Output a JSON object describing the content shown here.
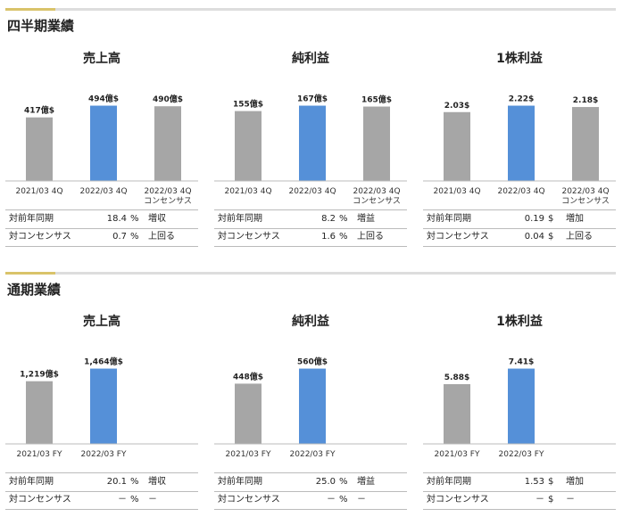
{
  "sections": [
    {
      "title": "四半期業績",
      "panels": [
        {
          "title": "売上高",
          "categories": [
            "2021/03 4Q",
            "2022/03 4Q",
            "2022/03 4Q\nコンセンサス"
          ],
          "values": [
            417,
            494,
            490
          ],
          "value_labels": [
            "417億$",
            "494億$",
            "490億$"
          ],
          "colors": [
            "#a6a6a6",
            "#5590d8",
            "#a6a6a6"
          ],
          "rows": [
            {
              "label": "対前年同期",
              "value": "18.4",
              "unit": "%",
              "note": "増収"
            },
            {
              "label": "対コンセンサス",
              "value": "0.7",
              "unit": "%",
              "note": "上回る"
            }
          ]
        },
        {
          "title": "純利益",
          "categories": [
            "2021/03 4Q",
            "2022/03 4Q",
            "2022/03 4Q\nコンセンサス"
          ],
          "values": [
            155,
            167,
            165
          ],
          "value_labels": [
            "155億$",
            "167億$",
            "165億$"
          ],
          "colors": [
            "#a6a6a6",
            "#5590d8",
            "#a6a6a6"
          ],
          "rows": [
            {
              "label": "対前年同期",
              "value": "8.2",
              "unit": "%",
              "note": "増益"
            },
            {
              "label": "対コンセンサス",
              "value": "1.6",
              "unit": "%",
              "note": "上回る"
            }
          ]
        },
        {
          "title": "1株利益",
          "categories": [
            "2021/03 4Q",
            "2022/03 4Q",
            "2022/03 4Q\nコンセンサス"
          ],
          "values": [
            2.03,
            2.22,
            2.18
          ],
          "value_labels": [
            "2.03$",
            "2.22$",
            "2.18$"
          ],
          "colors": [
            "#a6a6a6",
            "#5590d8",
            "#a6a6a6"
          ],
          "rows": [
            {
              "label": "対前年同期",
              "value": "0.19",
              "unit": "$",
              "note": "増加"
            },
            {
              "label": "対コンセンサス",
              "value": "0.04",
              "unit": "$",
              "note": "上回る"
            }
          ]
        }
      ]
    },
    {
      "title": "通期業績",
      "panels": [
        {
          "title": "売上高",
          "categories": [
            "2021/03 FY",
            "2022/03 FY"
          ],
          "values": [
            1219,
            1464
          ],
          "value_labels": [
            "1,219億$",
            "1,464億$"
          ],
          "colors": [
            "#a6a6a6",
            "#5590d8"
          ],
          "rows": [
            {
              "label": "対前年同期",
              "value": "20.1",
              "unit": "%",
              "note": "増収"
            },
            {
              "label": "対コンセンサス",
              "value": "－",
              "unit": "%",
              "note": "－"
            }
          ]
        },
        {
          "title": "純利益",
          "categories": [
            "2021/03 FY",
            "2022/03 FY"
          ],
          "values": [
            448,
            560
          ],
          "value_labels": [
            "448億$",
            "560億$"
          ],
          "colors": [
            "#a6a6a6",
            "#5590d8"
          ],
          "rows": [
            {
              "label": "対前年同期",
              "value": "25.0",
              "unit": "%",
              "note": "増益"
            },
            {
              "label": "対コンセンサス",
              "value": "－",
              "unit": "%",
              "note": "－"
            }
          ]
        },
        {
          "title": "1株利益",
          "categories": [
            "2021/03 FY",
            "2022/03 FY"
          ],
          "values": [
            5.88,
            7.41
          ],
          "value_labels": [
            "5.88$",
            "7.41$"
          ],
          "colors": [
            "#a6a6a6",
            "#5590d8"
          ],
          "rows": [
            {
              "label": "対前年同期",
              "value": "1.53",
              "unit": "$",
              "note": "増加"
            },
            {
              "label": "対コンセンサス",
              "value": "－",
              "unit": "$",
              "note": "－"
            }
          ]
        }
      ]
    }
  ],
  "chart_data": [
    {
      "type": "bar",
      "title": "売上高",
      "categories": [
        "2021/03 4Q",
        "2022/03 4Q",
        "2022/03 4Q コンセンサス"
      ],
      "values": [
        417,
        494,
        490
      ],
      "ylabel": "億$"
    },
    {
      "type": "bar",
      "title": "純利益",
      "categories": [
        "2021/03 4Q",
        "2022/03 4Q",
        "2022/03 4Q コンセンサス"
      ],
      "values": [
        155,
        167,
        165
      ],
      "ylabel": "億$"
    },
    {
      "type": "bar",
      "title": "1株利益",
      "categories": [
        "2021/03 4Q",
        "2022/03 4Q",
        "2022/03 4Q コンセンサス"
      ],
      "values": [
        2.03,
        2.22,
        2.18
      ],
      "ylabel": "$"
    },
    {
      "type": "bar",
      "title": "売上高",
      "categories": [
        "2021/03 FY",
        "2022/03 FY"
      ],
      "values": [
        1219,
        1464
      ],
      "ylabel": "億$"
    },
    {
      "type": "bar",
      "title": "純利益",
      "categories": [
        "2021/03 FY",
        "2022/03 FY"
      ],
      "values": [
        448,
        560
      ],
      "ylabel": "億$"
    },
    {
      "type": "bar",
      "title": "1株利益",
      "categories": [
        "2021/03 FY",
        "2022/03 FY"
      ],
      "values": [
        5.88,
        7.41
      ],
      "ylabel": "$"
    }
  ]
}
